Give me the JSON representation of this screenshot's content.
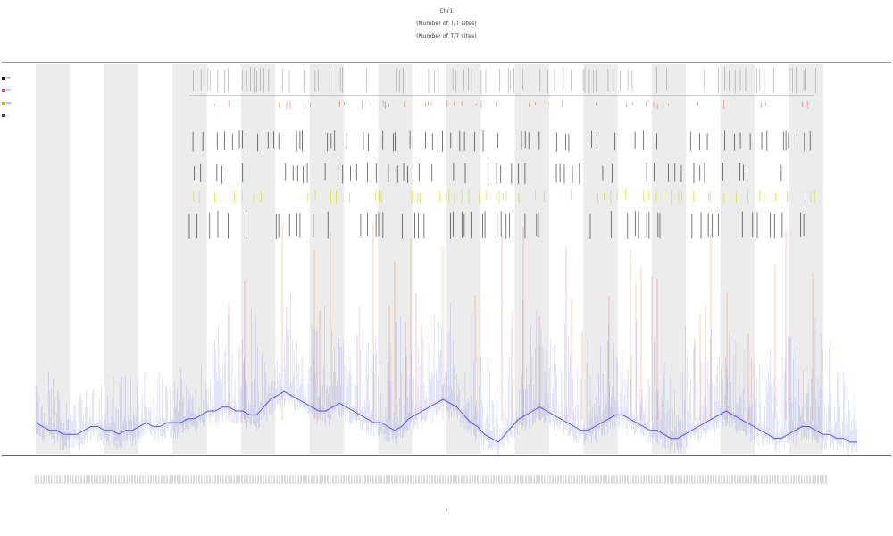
{
  "chart": {
    "title_lines": [
      "Chr1",
      "(Number of T/T sites)",
      "(Number of T/T sites)"
    ],
    "x_axis_title": "x"
  },
  "legend": {
    "items": [
      {
        "label": "T/T",
        "color": "#222222"
      },
      {
        "label": "C/T",
        "color": "#d9534f"
      },
      {
        "label": "A/G",
        "color": "#c8b400"
      },
      {
        "label": "—",
        "color": "#444444"
      }
    ]
  },
  "colors": {
    "band": "#ececec",
    "baseline": "#333333",
    "coverage": "#3a3ad8",
    "orange": "#e8731f",
    "red": "#d9534f",
    "yellow": "#d6d600",
    "black": "#111111"
  },
  "chart_data": {
    "type": "line",
    "title": "Chr1",
    "subtitle": [
      "(Number of T/T sites)",
      "(Number of T/T sites)"
    ],
    "xlabel": "x",
    "ylabel": "",
    "grid": false,
    "legend_position": "top-left",
    "x_range": [
      0,
      120
    ],
    "y_range": [
      0,
      1
    ],
    "shaded_bands": [
      [
        0,
        5
      ],
      [
        10,
        15
      ],
      [
        20,
        25
      ],
      [
        30,
        35
      ],
      [
        40,
        45
      ],
      [
        50,
        55
      ],
      [
        60,
        65
      ],
      [
        70,
        75
      ],
      [
        80,
        85
      ],
      [
        90,
        95
      ],
      [
        100,
        105
      ],
      [
        110,
        115
      ]
    ],
    "series": [
      {
        "name": "T/T",
        "values": [
          0.08,
          0.07,
          0.06,
          0.06,
          0.05,
          0.05,
          0.05,
          0.06,
          0.07,
          0.07,
          0.06,
          0.06,
          0.05,
          0.06,
          0.06,
          0.07,
          0.08,
          0.07,
          0.07,
          0.08,
          0.08,
          0.08,
          0.09,
          0.09,
          0.1,
          0.11,
          0.11,
          0.12,
          0.12,
          0.11,
          0.11,
          0.1,
          0.1,
          0.12,
          0.14,
          0.15,
          0.16,
          0.15,
          0.14,
          0.13,
          0.12,
          0.11,
          0.11,
          0.12,
          0.13,
          0.12,
          0.11,
          0.1,
          0.09,
          0.08,
          0.08,
          0.07,
          0.06,
          0.07,
          0.09,
          0.1,
          0.11,
          0.12,
          0.13,
          0.14,
          0.13,
          0.12,
          0.1,
          0.08,
          0.07,
          0.05,
          0.04,
          0.03,
          0.05,
          0.07,
          0.09,
          0.1,
          0.11,
          0.12,
          0.11,
          0.1,
          0.09,
          0.08,
          0.07,
          0.06,
          0.06,
          0.07,
          0.08,
          0.09,
          0.1,
          0.1,
          0.09,
          0.08,
          0.07,
          0.06,
          0.06,
          0.05,
          0.04,
          0.04,
          0.05,
          0.06,
          0.07,
          0.08,
          0.09,
          0.1,
          0.11,
          0.1,
          0.09,
          0.08,
          0.07,
          0.06,
          0.05,
          0.04,
          0.04,
          0.05,
          0.06,
          0.07,
          0.07,
          0.06,
          0.05,
          0.05,
          0.04,
          0.04,
          0.03,
          0.03
        ]
      }
    ]
  }
}
